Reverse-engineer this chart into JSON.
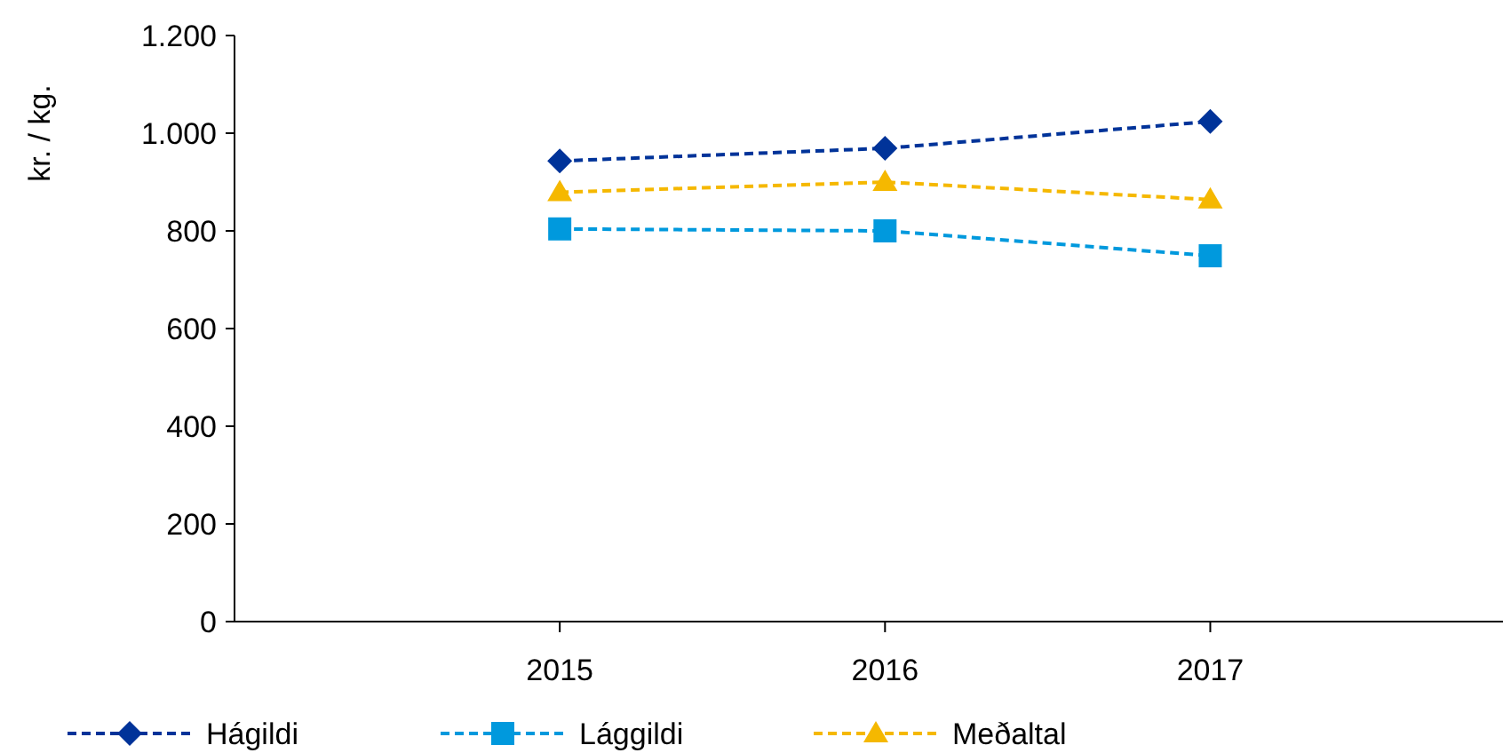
{
  "chart_data": {
    "type": "line",
    "ylabel": "kr. / kg.",
    "x": [
      2015,
      2016,
      2017
    ],
    "xlim": [
      2014,
      2017.9
    ],
    "xticks": [
      2015,
      2016,
      2017
    ],
    "ylim": [
      0,
      1200
    ],
    "yticks": [
      0,
      200,
      400,
      600,
      800,
      {
        "value": 1000,
        "label": "1.000"
      },
      {
        "value": 1200,
        "label": "1.200"
      }
    ],
    "grid": false,
    "legend": "bottom",
    "line_style": "dashed",
    "series": [
      {
        "name": "Hágildi",
        "color": "#003399",
        "marker": "diamond",
        "values": [
          943,
          969,
          1024
        ]
      },
      {
        "name": "Lággildi",
        "color": "#0099dd",
        "marker": "square",
        "values": [
          804,
          800,
          749
        ]
      },
      {
        "name": "Meðaltal",
        "color": "#f5b800",
        "marker": "triangle",
        "values": [
          879,
          900,
          864
        ]
      }
    ]
  }
}
